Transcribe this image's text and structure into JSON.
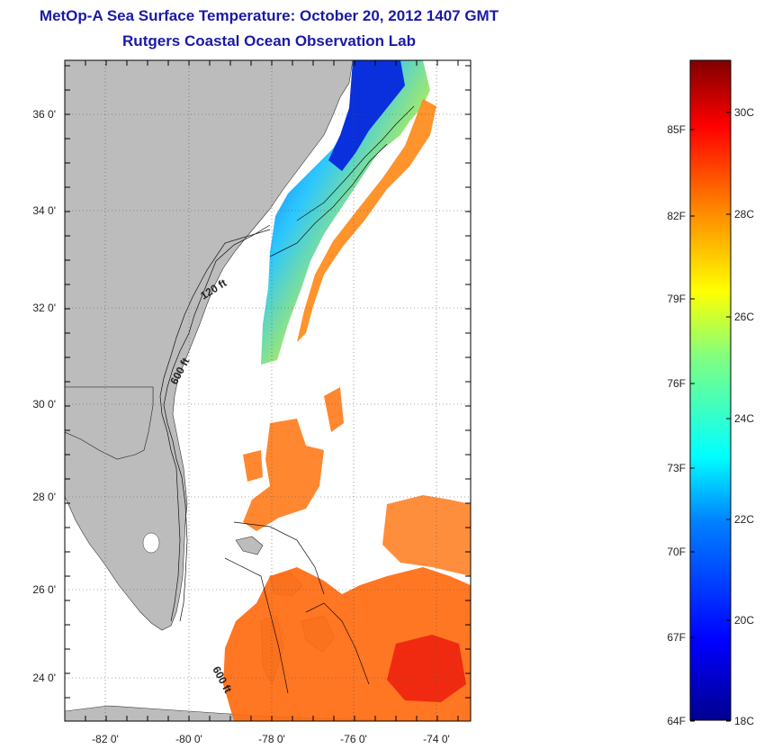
{
  "title_line1": "MetOp-A Sea Surface Temperature:  October 20, 2012 1407 GMT",
  "title_line2": "Rutgers Coastal Ocean Observation Lab",
  "lat_labels": [
    "36 0'",
    "34 0'",
    "32 0'",
    "30 0'",
    "28 0'",
    "26 0'",
    "24 0'"
  ],
  "lon_labels": [
    "-82 0'",
    "-80 0'",
    "-78 0'",
    "-76 0'",
    "-74 0'"
  ],
  "contour_labels": [
    "120 ft",
    "600 ft",
    "600 ft"
  ],
  "colorbar": {
    "f_labels": [
      "85F",
      "82F",
      "79F",
      "76F",
      "73F",
      "70F",
      "67F",
      "64F"
    ],
    "c_labels": [
      "30C",
      "28C",
      "26C",
      "24C",
      "22C",
      "20C",
      "18C"
    ],
    "range_c": [
      18,
      31
    ]
  },
  "colors": {
    "land": "#bcbcbc",
    "ocean_bg": "#ffffff",
    "title": "#1a1aa6"
  }
}
